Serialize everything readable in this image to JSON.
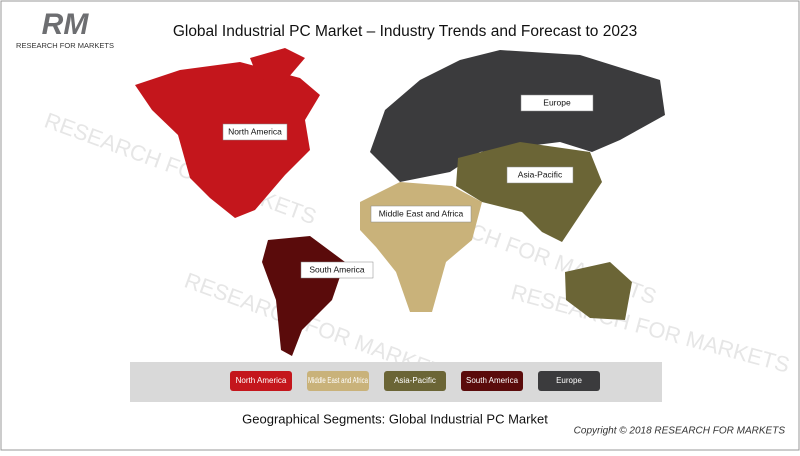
{
  "header": {
    "logo_letters": "RM",
    "logo_text": "RESEARCH FOR MARKETS",
    "title": "Global Industrial PC Market – Industry Trends and Forecast to 2023"
  },
  "watermark": "RESEARCH FOR MARKETS",
  "map_labels": [
    "North America",
    "Europe",
    "Asia-Pacific",
    "Middle East and Africa",
    "South America"
  ],
  "legend": [
    "North America",
    "Middle East and Africa",
    "Asia-Pacific",
    "South America",
    "Europe"
  ],
  "caption": "Geographical Segments: Global Industrial PC Market",
  "copyright": "Copyright © 2018 RESEARCH FOR MARKETS"
}
